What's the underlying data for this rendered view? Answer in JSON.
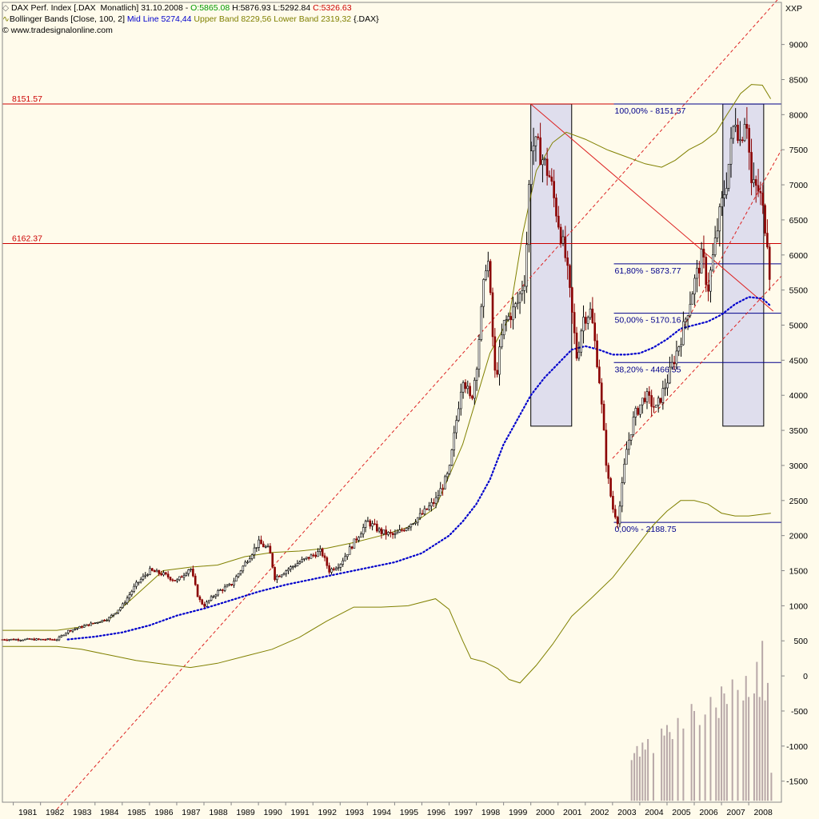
{
  "header": {
    "line1": {
      "name": "DAX Perf. Index [.DAX  Monatlich] 31.10.2008 - ",
      "open": "O:5865.08",
      "high": "H:5876.93",
      "low": "L:5292.84",
      "close": "C:5326.63"
    },
    "line2": {
      "indicator": "Bollinger Bands [Close, 100, 2]",
      "mid": "Mid Line 5274,44",
      "upper": "Upper Band 8229,56",
      "lower": "Lower Band 2319,32",
      "symbol": "{.DAX}"
    },
    "line3": "© www.tradesignalonline.com"
  },
  "colors": {
    "background": "#fffbeb",
    "grid_line": "#cc0000",
    "candle_up": "#000000",
    "candle_down": "#8b0000",
    "bollinger": "#808000",
    "midline": "#0000cc",
    "fib": "#00008b",
    "box_fill": "#d4d4ee",
    "volume": "#b8a8a8"
  },
  "chart_data": {
    "type": "candlestick",
    "title": "DAX Perf. Index [.DAX  Monatlich] 31.10.2008",
    "scale_label": "XXP",
    "ylim": [
      -1800,
      9600
    ],
    "y_ticks": [
      9000,
      8500,
      8000,
      7500,
      7000,
      6500,
      6000,
      5500,
      5000,
      4500,
      4000,
      3500,
      3000,
      2500,
      2000,
      1500,
      1000,
      500,
      0,
      -500,
      -1000,
      -1500
    ],
    "x_ticks": [
      "1981",
      "1982",
      "1983",
      "1984",
      "1985",
      "1986",
      "1987",
      "1988",
      "1989",
      "1990",
      "1991",
      "1992",
      "1993",
      "1994",
      "1995",
      "1996",
      "1997",
      "1998",
      "1999",
      "2000",
      "2001",
      "2002",
      "2003",
      "2004",
      "2005",
      "2006",
      "2007",
      "2008"
    ],
    "x_range": [
      1980.6,
      2009.2
    ],
    "price_path": [
      [
        1980.6,
        520
      ],
      [
        1982.6,
        520
      ],
      [
        1983.0,
        640
      ],
      [
        1984.0,
        760
      ],
      [
        1984.5,
        820
      ],
      [
        1985.0,
        1000
      ],
      [
        1985.5,
        1300
      ],
      [
        1986.0,
        1500
      ],
      [
        1986.5,
        1450
      ],
      [
        1987.0,
        1350
      ],
      [
        1987.5,
        1550
      ],
      [
        1987.8,
        1100
      ],
      [
        1988.0,
        1000
      ],
      [
        1988.5,
        1200
      ],
      [
        1989.0,
        1300
      ],
      [
        1989.5,
        1600
      ],
      [
        1990.0,
        1900
      ],
      [
        1990.4,
        1800
      ],
      [
        1990.6,
        1400
      ],
      [
        1991.0,
        1500
      ],
      [
        1991.5,
        1620
      ],
      [
        1992.0,
        1720
      ],
      [
        1992.3,
        1780
      ],
      [
        1992.6,
        1500
      ],
      [
        1993.0,
        1600
      ],
      [
        1993.5,
        1900
      ],
      [
        1994.0,
        2200
      ],
      [
        1994.5,
        2050
      ],
      [
        1995.0,
        2000
      ],
      [
        1995.5,
        2150
      ],
      [
        1996.0,
        2300
      ],
      [
        1996.5,
        2500
      ],
      [
        1997.0,
        2900
      ],
      [
        1997.5,
        4300
      ],
      [
        1997.8,
        3900
      ],
      [
        1998.0,
        4400
      ],
      [
        1998.4,
        6100
      ],
      [
        1998.7,
        4200
      ],
      [
        1999.0,
        5000
      ],
      [
        1999.5,
        5300
      ],
      [
        1999.8,
        5700
      ],
      [
        2000.0,
        7600
      ],
      [
        2000.3,
        7500
      ],
      [
        2000.7,
        7100
      ],
      [
        2001.0,
        6500
      ],
      [
        2001.3,
        5900
      ],
      [
        2001.7,
        4500
      ],
      [
        2001.9,
        5100
      ],
      [
        2002.2,
        5200
      ],
      [
        2002.5,
        4300
      ],
      [
        2002.8,
        2900
      ],
      [
        2003.0,
        2400
      ],
      [
        2003.2,
        2200
      ],
      [
        2003.5,
        3200
      ],
      [
        2003.8,
        3700
      ],
      [
        2004.2,
        4000
      ],
      [
        2004.6,
        3800
      ],
      [
        2005.0,
        4200
      ],
      [
        2005.5,
        4800
      ],
      [
        2006.0,
        5600
      ],
      [
        2006.3,
        6000
      ],
      [
        2006.5,
        5500
      ],
      [
        2006.9,
        6500
      ],
      [
        2007.2,
        7100
      ],
      [
        2007.5,
        8000
      ],
      [
        2007.7,
        7600
      ],
      [
        2007.9,
        8100
      ],
      [
        2008.1,
        7000
      ],
      [
        2008.4,
        6900
      ],
      [
        2008.7,
        6200
      ],
      [
        2008.83,
        5326
      ]
    ],
    "series": [
      {
        "name": "Upper Band 8229,56",
        "color": "#808000",
        "points": [
          [
            1980.6,
            650
          ],
          [
            1982.6,
            650
          ],
          [
            1983.5,
            700
          ],
          [
            1984.5,
            800
          ],
          [
            1985.5,
            1150
          ],
          [
            1986.5,
            1500
          ],
          [
            1987.5,
            1550
          ],
          [
            1988.5,
            1580
          ],
          [
            1989.5,
            1700
          ],
          [
            1990.5,
            1760
          ],
          [
            1991.5,
            1780
          ],
          [
            1992.5,
            1820
          ],
          [
            1993.5,
            1900
          ],
          [
            1994.5,
            2000
          ],
          [
            1995.5,
            2120
          ],
          [
            1996.5,
            2400
          ],
          [
            1997.5,
            3300
          ],
          [
            1998.5,
            4600
          ],
          [
            1999.2,
            5100
          ],
          [
            1999.7,
            6300
          ],
          [
            2000.2,
            7200
          ],
          [
            2000.8,
            7600
          ],
          [
            2001.3,
            7750
          ],
          [
            2002.0,
            7650
          ],
          [
            2002.8,
            7500
          ],
          [
            2003.5,
            7400
          ],
          [
            2004.2,
            7300
          ],
          [
            2004.8,
            7250
          ],
          [
            2005.3,
            7350
          ],
          [
            2005.8,
            7500
          ],
          [
            2006.3,
            7600
          ],
          [
            2006.8,
            7750
          ],
          [
            2007.2,
            8000
          ],
          [
            2007.7,
            8300
          ],
          [
            2008.1,
            8430
          ],
          [
            2008.5,
            8420
          ],
          [
            2008.8,
            8230
          ]
        ]
      },
      {
        "name": "Lower Band 2319,32",
        "color": "#808000",
        "points": [
          [
            1980.6,
            420
          ],
          [
            1982.6,
            420
          ],
          [
            1983.5,
            380
          ],
          [
            1984.5,
            300
          ],
          [
            1985.5,
            220
          ],
          [
            1986.5,
            170
          ],
          [
            1987.5,
            120
          ],
          [
            1988.5,
            180
          ],
          [
            1989.5,
            280
          ],
          [
            1990.5,
            380
          ],
          [
            1991.5,
            550
          ],
          [
            1992.5,
            780
          ],
          [
            1993.5,
            980
          ],
          [
            1994.5,
            980
          ],
          [
            1995.5,
            1000
          ],
          [
            1996.5,
            1100
          ],
          [
            1997.0,
            950
          ],
          [
            1997.5,
            500
          ],
          [
            1997.8,
            250
          ],
          [
            1998.3,
            200
          ],
          [
            1998.8,
            100
          ],
          [
            1999.2,
            -50
          ],
          [
            1999.6,
            -100
          ],
          [
            2000.2,
            150
          ],
          [
            2000.8,
            450
          ],
          [
            2001.5,
            850
          ],
          [
            2002.2,
            1100
          ],
          [
            2003.0,
            1400
          ],
          [
            2003.5,
            1650
          ],
          [
            2004.0,
            1900
          ],
          [
            2004.5,
            2150
          ],
          [
            2005.0,
            2350
          ],
          [
            2005.5,
            2500
          ],
          [
            2006.0,
            2500
          ],
          [
            2006.5,
            2450
          ],
          [
            2007.0,
            2320
          ],
          [
            2007.5,
            2280
          ],
          [
            2008.0,
            2280
          ],
          [
            2008.8,
            2319
          ]
        ]
      },
      {
        "name": "Mid Line 5274,44",
        "color": "#0000cc",
        "dotted": true,
        "points": [
          [
            1983.0,
            520
          ],
          [
            1984.0,
            560
          ],
          [
            1985.0,
            620
          ],
          [
            1986.0,
            720
          ],
          [
            1987.0,
            860
          ],
          [
            1988.0,
            960
          ],
          [
            1989.0,
            1080
          ],
          [
            1990.0,
            1200
          ],
          [
            1991.0,
            1300
          ],
          [
            1992.0,
            1380
          ],
          [
            1993.0,
            1460
          ],
          [
            1994.0,
            1540
          ],
          [
            1995.0,
            1620
          ],
          [
            1996.0,
            1750
          ],
          [
            1997.0,
            2000
          ],
          [
            1997.5,
            2200
          ],
          [
            1998.0,
            2450
          ],
          [
            1998.5,
            2800
          ],
          [
            1999.0,
            3300
          ],
          [
            1999.5,
            3650
          ],
          [
            2000.0,
            4000
          ],
          [
            2000.5,
            4250
          ],
          [
            2001.0,
            4450
          ],
          [
            2001.5,
            4650
          ],
          [
            2002.0,
            4700
          ],
          [
            2002.5,
            4650
          ],
          [
            2003.0,
            4580
          ],
          [
            2003.5,
            4580
          ],
          [
            2004.0,
            4600
          ],
          [
            2004.5,
            4680
          ],
          [
            2005.0,
            4800
          ],
          [
            2005.5,
            4950
          ],
          [
            2006.0,
            5000
          ],
          [
            2006.5,
            5050
          ],
          [
            2007.0,
            5150
          ],
          [
            2007.5,
            5300
          ],
          [
            2008.0,
            5400
          ],
          [
            2008.5,
            5380
          ],
          [
            2008.8,
            5274
          ]
        ]
      }
    ],
    "horizontal_lines": [
      {
        "label": "8151.57",
        "value": 8151.57
      },
      {
        "label": "6162.37",
        "value": 6162.37
      }
    ],
    "fibonacci": {
      "low": 2188.75,
      "high": 8151.57,
      "levels": [
        {
          "label": "100,00% - 8151.57",
          "value": 8151.57
        },
        {
          "label": "61,80% - 5873.77",
          "value": 5873.77
        },
        {
          "label": "50,00% - 5170.16",
          "value": 5170.16
        },
        {
          "label": "38,20% - 4466.55",
          "value": 4466.55
        },
        {
          "label": "0,00% - 2188.75",
          "value": 2188.75
        }
      ]
    },
    "boxes": [
      {
        "x0": 2000.0,
        "x1": 2001.5,
        "y0": 3560,
        "y1": 8151
      },
      {
        "x0": 2007.05,
        "x1": 2008.55,
        "y0": 3560,
        "y1": 8151
      }
    ],
    "trend_lines": [
      {
        "points": [
          [
            1982.6,
            -1900
          ],
          [
            2009.2,
            9700
          ]
        ],
        "dashed": true
      },
      {
        "points": [
          [
            2000.0,
            8151
          ],
          [
            2008.9,
            5200
          ]
        ],
        "dashed": false
      },
      {
        "points": [
          [
            2003.0,
            3100
          ],
          [
            2009.2,
            5700
          ]
        ],
        "dashed": true
      },
      {
        "points": [
          [
            2005.5,
            4900
          ],
          [
            2009.2,
            7500
          ]
        ],
        "dashed": true
      }
    ],
    "volume": {
      "baseline": -1780,
      "bars": [
        [
          2003.7,
          -1200
        ],
        [
          2003.8,
          -1100
        ],
        [
          2003.9,
          -1000
        ],
        [
          2004.0,
          -1150
        ],
        [
          2004.1,
          -950
        ],
        [
          2004.2,
          -1050
        ],
        [
          2004.3,
          -900
        ],
        [
          2004.5,
          -1100
        ],
        [
          2004.8,
          -750
        ],
        [
          2004.9,
          -850
        ],
        [
          2005.0,
          -700
        ],
        [
          2005.1,
          -800
        ],
        [
          2005.2,
          -900
        ],
        [
          2005.4,
          -600
        ],
        [
          2005.6,
          -750
        ],
        [
          2005.9,
          -400
        ],
        [
          2006.0,
          -500
        ],
        [
          2006.2,
          -700
        ],
        [
          2006.4,
          -550
        ],
        [
          2006.6,
          -300
        ],
        [
          2006.8,
          -450
        ],
        [
          2006.9,
          -600
        ],
        [
          2007.0,
          -150
        ],
        [
          2007.1,
          -250
        ],
        [
          2007.2,
          -400
        ],
        [
          2007.4,
          -50
        ],
        [
          2007.6,
          -200
        ],
        [
          2007.8,
          -350
        ],
        [
          2007.9,
          0
        ],
        [
          2008.0,
          -300
        ],
        [
          2008.2,
          -250
        ],
        [
          2008.3,
          200
        ],
        [
          2008.4,
          -300
        ],
        [
          2008.5,
          500
        ],
        [
          2008.6,
          -350
        ],
        [
          2008.7,
          -100
        ],
        [
          2008.83,
          -1380
        ]
      ]
    }
  }
}
